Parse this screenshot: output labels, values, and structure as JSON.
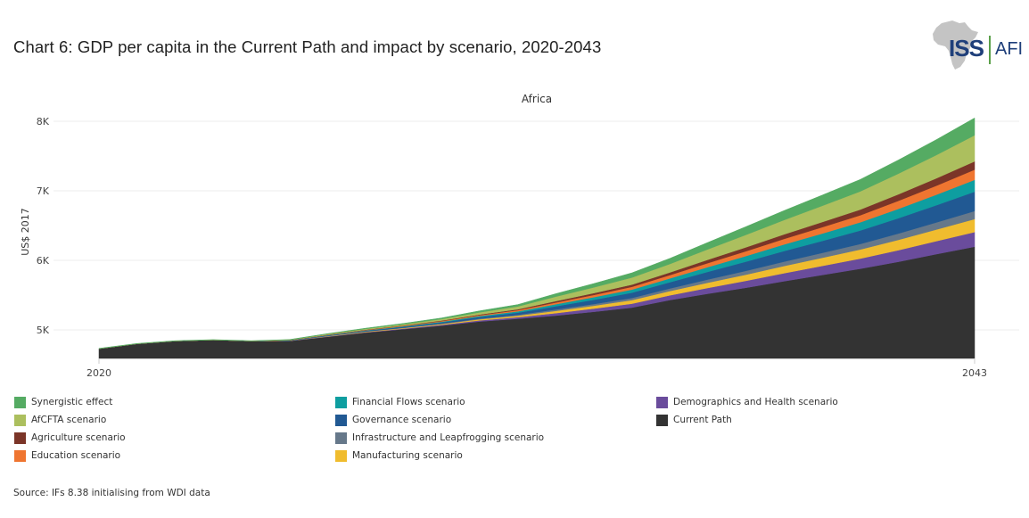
{
  "title": "Chart 6: GDP per capita in the Current Path and impact by scenario, 2020-2043",
  "logo": {
    "primary": "ISS",
    "secondary": "AFI",
    "icon": "africa-map-icon"
  },
  "source": "Source: IFs 8.38 initialising from WDI data",
  "chart_data": {
    "type": "area",
    "stacked": true,
    "title": "Africa",
    "xlabel": "",
    "ylabel": "US$ 2017",
    "x": [
      2020,
      2021,
      2022,
      2023,
      2024,
      2025,
      2026,
      2027,
      2028,
      2029,
      2030,
      2031,
      2032,
      2033,
      2034,
      2035,
      2036,
      2037,
      2038,
      2039,
      2040,
      2041,
      2042,
      2043
    ],
    "x_tick_labels": [
      "2020",
      "2043"
    ],
    "x_ticks": [
      2020,
      2043
    ],
    "y_ticks": [
      5000,
      6000,
      7000,
      8000
    ],
    "y_tick_labels": [
      "5K",
      "6K",
      "7K",
      "8K"
    ],
    "ylim": [
      4590,
      8050
    ],
    "grid": true,
    "legend_position": "bottom",
    "series": [
      {
        "name": "Current Path",
        "color": "#333333",
        "values": [
          4730,
          4800,
          4840,
          4855,
          4840,
          4840,
          4900,
          4960,
          5010,
          5060,
          5120,
          5160,
          5205,
          5260,
          5320,
          5430,
          5520,
          5606,
          5700,
          5790,
          5880,
          5980,
          6090,
          6196
        ]
      },
      {
        "name": "Demographics and Health scenario",
        "color": "#6a4c9c",
        "values": [
          0,
          0,
          0,
          0,
          0,
          2,
          5,
          7,
          9,
          13,
          17,
          23,
          36,
          46,
          57,
          68,
          84,
          100,
          116,
          130,
          146,
          166,
          187,
          210
        ]
      },
      {
        "name": "Manufacturing scenario",
        "color": "#f0bc2e",
        "values": [
          0,
          0,
          0,
          0,
          0,
          2,
          5,
          7,
          8,
          11,
          16,
          21,
          32,
          41,
          51,
          61,
          75,
          89,
          103,
          117,
          130,
          149,
          167,
          188
        ]
      },
      {
        "name": "Infrastructure and Leapfrogging scenario",
        "color": "#66788a",
        "values": [
          0,
          0,
          0,
          0,
          0,
          1,
          3,
          4,
          5,
          7,
          10,
          13,
          20,
          25,
          31,
          37,
          46,
          55,
          63,
          71,
          80,
          91,
          102,
          115
        ]
      },
      {
        "name": "Governance scenario",
        "color": "#215993",
        "values": [
          0,
          0,
          0,
          0,
          0,
          3,
          7,
          10,
          13,
          17,
          23,
          31,
          47,
          61,
          75,
          90,
          111,
          132,
          153,
          172,
          193,
          220,
          247,
          278
        ]
      },
      {
        "name": "Financial Flows scenario",
        "color": "#0e9ea0",
        "values": [
          0,
          0,
          0,
          0,
          0,
          2,
          4,
          6,
          8,
          10,
          14,
          19,
          29,
          38,
          46,
          55,
          68,
          81,
          94,
          106,
          119,
          135,
          152,
          171
        ]
      },
      {
        "name": "Education scenario",
        "color": "#ef7530",
        "values": [
          0,
          0,
          0,
          0,
          0,
          1,
          4,
          5,
          7,
          9,
          12,
          16,
          25,
          32,
          39,
          47,
          58,
          69,
          80,
          91,
          101,
          115,
          130,
          146
        ]
      },
      {
        "name": "Agriculture scenario",
        "color": "#7b3528",
        "values": [
          0,
          0,
          0,
          0,
          0,
          1,
          3,
          4,
          5,
          7,
          10,
          13,
          20,
          26,
          32,
          39,
          48,
          57,
          65,
          74,
          82,
          94,
          106,
          119
        ]
      },
      {
        "name": "AfCFTA scenario",
        "color": "#acbf5e",
        "values": [
          0,
          0,
          0,
          0,
          0,
          4,
          9,
          13,
          17,
          23,
          31,
          41,
          64,
          83,
          102,
          122,
          150,
          179,
          207,
          233,
          261,
          297,
          335,
          376
        ]
      },
      {
        "name": "Synergistic effect",
        "color": "#55ab63",
        "values": [
          5,
          5,
          5,
          5,
          5,
          5,
          6,
          9,
          11,
          15,
          21,
          27,
          42,
          55,
          67,
          80,
          99,
          118,
          136,
          154,
          172,
          196,
          221,
          248
        ]
      }
    ]
  },
  "legend": [
    {
      "label": "Synergistic effect",
      "color": "#55ab63"
    },
    {
      "label": "AfCFTA scenario",
      "color": "#acbf5e"
    },
    {
      "label": "Agriculture scenario",
      "color": "#7b3528"
    },
    {
      "label": "Education scenario",
      "color": "#ef7530"
    },
    {
      "label": "Financial Flows scenario",
      "color": "#0e9ea0"
    },
    {
      "label": "Governance scenario",
      "color": "#215993"
    },
    {
      "label": "Infrastructure and Leapfrogging scenario",
      "color": "#66788a"
    },
    {
      "label": "Manufacturing scenario",
      "color": "#f0bc2e"
    },
    {
      "label": "Demographics and Health scenario",
      "color": "#6a4c9c"
    },
    {
      "label": "Current Path",
      "color": "#333333"
    }
  ]
}
